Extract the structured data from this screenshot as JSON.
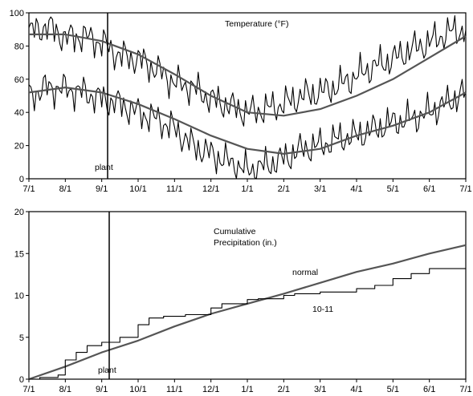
{
  "chart_data": [
    {
      "type": "line",
      "title": "Temperature (°F)",
      "ylim": [
        0,
        100
      ],
      "yticks": [
        "0",
        "20",
        "40",
        "60",
        "80",
        "100"
      ],
      "xticks": [
        "7/1",
        "8/1",
        "9/1",
        "10/1",
        "11/1",
        "12/1",
        "1/1",
        "2/1",
        "3/1",
        "4/1",
        "5/1",
        "6/1",
        "7/1"
      ],
      "marker": {
        "label": "plant",
        "x": "9/1"
      },
      "series": [
        {
          "values_note": "daily high temperature (noisy)",
          "x_month": [
            0,
            0.5,
            1,
            1.5,
            2,
            2.5,
            3,
            3.5,
            4,
            4.5,
            5,
            5.5,
            6,
            6.5,
            7,
            7.5,
            8,
            8.5,
            9,
            9.5,
            10,
            10.5,
            11,
            11.5,
            12
          ],
          "y": [
            88,
            92,
            85,
            86,
            82,
            74,
            72,
            66,
            58,
            55,
            48,
            44,
            40,
            42,
            45,
            50,
            52,
            56,
            62,
            68,
            72,
            78,
            82,
            88,
            90
          ]
        },
        {
          "values_note": "normal high temperature (smooth)",
          "x_month": [
            0,
            1,
            2,
            3,
            4,
            5,
            6,
            7,
            8,
            9,
            10,
            11,
            12
          ],
          "y": [
            87,
            87,
            83,
            75,
            63,
            50,
            40,
            38,
            42,
            50,
            60,
            73,
            86
          ]
        },
        {
          "values_note": "daily low temperature (noisy)",
          "x_month": [
            0,
            0.5,
            1,
            1.5,
            2,
            2.5,
            3,
            3.5,
            4,
            4.5,
            5,
            5.5,
            6,
            6.5,
            7,
            7.5,
            8,
            8.5,
            9,
            9.5,
            10,
            10.5,
            11,
            11.5,
            12
          ],
          "y": [
            50,
            55,
            54,
            52,
            48,
            45,
            40,
            36,
            30,
            20,
            15,
            10,
            5,
            8,
            12,
            18,
            20,
            24,
            26,
            30,
            34,
            36,
            40,
            46,
            52
          ]
        },
        {
          "values_note": "normal low temperature (smooth)",
          "x_month": [
            0,
            1,
            2,
            3,
            4,
            5,
            6,
            7,
            8,
            9,
            10,
            11,
            12
          ],
          "y": [
            52,
            55,
            52,
            45,
            36,
            26,
            18,
            15,
            18,
            26,
            32,
            40,
            52
          ]
        }
      ]
    },
    {
      "type": "line",
      "title": "Cumulative Precipitation (in.)",
      "title_lines": [
        "Cumulative",
        "Precipitation (in.)"
      ],
      "ylim": [
        0,
        20
      ],
      "yticks": [
        "0",
        "5",
        "10",
        "15",
        "20"
      ],
      "xticks": [
        "7/1",
        "8/1",
        "9/1",
        "10/1",
        "11/1",
        "12/1",
        "1/1",
        "2/1",
        "3/1",
        "4/1",
        "5/1",
        "6/1",
        "7/1"
      ],
      "marker": {
        "label": "plant",
        "x": "9/1"
      },
      "series": [
        {
          "name": "normal",
          "x_month": [
            0,
            1,
            2,
            3,
            4,
            5,
            6,
            7,
            8,
            9,
            10,
            11,
            12
          ],
          "y": [
            0,
            1.5,
            3.2,
            4.6,
            6.3,
            7.8,
            9.0,
            10.2,
            11.5,
            12.8,
            13.8,
            15.0,
            16.0
          ]
        },
        {
          "name": "10-11",
          "x_month": [
            0,
            0.3,
            0.8,
            1.0,
            1.3,
            1.6,
            2.0,
            2.5,
            3.0,
            3.3,
            3.7,
            4.3,
            5.0,
            5.3,
            6.0,
            6.3,
            7.0,
            7.3,
            8.0,
            9.0,
            9.5,
            10.0,
            10.5,
            11.0,
            11.5,
            12.0
          ],
          "y": [
            0,
            0.2,
            0.5,
            2.3,
            3.2,
            4.0,
            4.4,
            5.0,
            6.5,
            7.3,
            7.5,
            7.7,
            8.5,
            9.0,
            9.5,
            9.6,
            10.0,
            10.2,
            10.4,
            10.8,
            11.2,
            12.0,
            12.6,
            13.2,
            13.2,
            13.2
          ]
        }
      ]
    }
  ]
}
